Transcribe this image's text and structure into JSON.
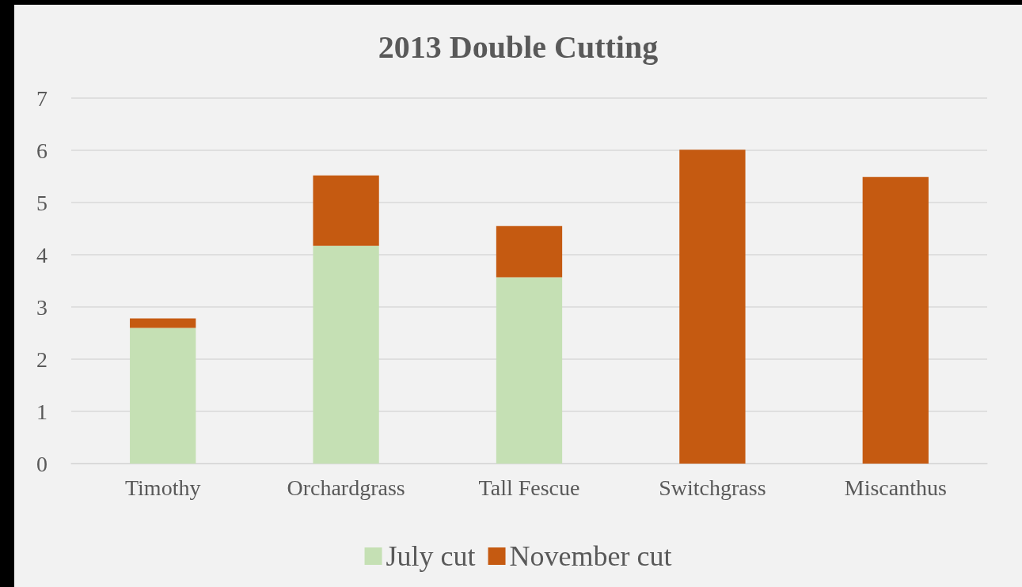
{
  "chart_data": {
    "type": "bar",
    "title": "2013 Double Cutting",
    "categories": [
      "Timothy",
      "Orchardgrass",
      "Tall Fescue",
      "Switchgrass",
      "Miscanthus"
    ],
    "stacked": true,
    "series": [
      {
        "name": "July cut",
        "color": "#c5e0b4",
        "values": [
          2.6,
          4.17,
          3.57,
          0,
          0
        ]
      },
      {
        "name": "November cut",
        "color": "#c55a11",
        "values": [
          0.18,
          1.35,
          0.98,
          6.01,
          5.49
        ]
      }
    ],
    "ylim": [
      0,
      7
    ],
    "yticks": [
      0,
      1,
      2,
      3,
      4,
      5,
      6,
      7
    ],
    "grid": "y",
    "legend": "bottom"
  }
}
